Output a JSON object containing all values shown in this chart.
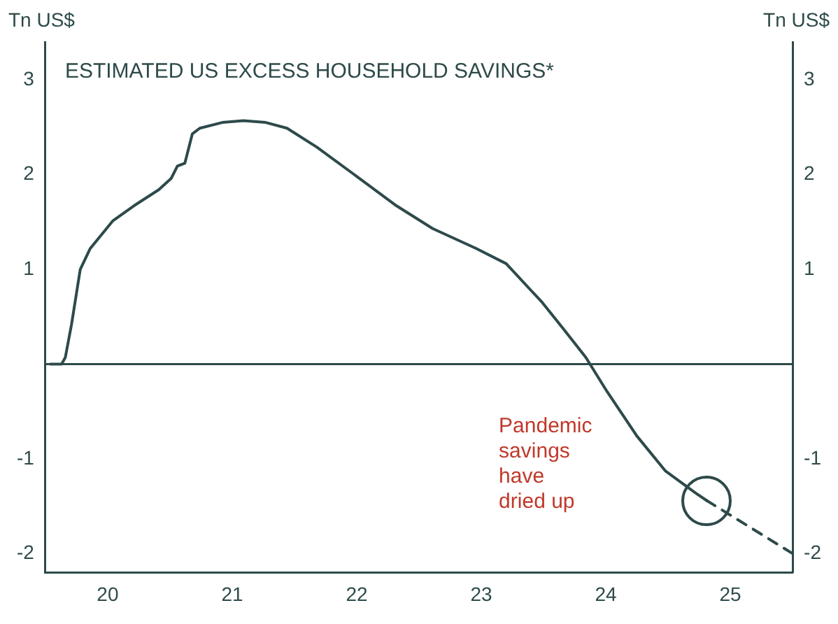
{
  "chart_data": {
    "type": "line",
    "title": "ESTIMATED US EXCESS HOUSEHOLD SAVINGS*",
    "ylabel": "Tn US$",
    "y2label": "Tn US$",
    "series": [
      {
        "color": "#2e4a4a",
        "line_style": "solid",
        "x": [
          19.54,
          19.63,
          19.66,
          19.71,
          19.78,
          19.86,
          20.04,
          20.21,
          20.41,
          20.51,
          20.56,
          20.62,
          20.68,
          20.74,
          20.92,
          21.09,
          21.27,
          21.44,
          21.68,
          21.97,
          22.32,
          22.61,
          22.96,
          23.2,
          23.49,
          23.66,
          23.84,
          24.01,
          24.25,
          24.48,
          24.72,
          24.81
        ],
        "values": [
          0,
          0,
          0.07,
          0.42,
          1.0,
          1.22,
          1.51,
          1.67,
          1.84,
          1.96,
          2.09,
          2.12,
          2.43,
          2.49,
          2.55,
          2.57,
          2.55,
          2.49,
          2.29,
          2.01,
          1.67,
          1.43,
          1.22,
          1.06,
          0.65,
          0.37,
          0.07,
          -0.29,
          -0.76,
          -1.13,
          -1.36,
          -1.44
        ]
      },
      {
        "color": "#2e4a4a",
        "line_style": "dashed",
        "x": [
          24.81,
          25.5
        ],
        "values": [
          -1.44,
          -2.0
        ]
      }
    ],
    "xlim": [
      19.5,
      25.5
    ],
    "xticks": [
      20,
      21,
      22,
      23,
      24,
      25
    ],
    "ylim": [
      -2.2,
      3.4
    ],
    "yticks": [
      3,
      2,
      1,
      -1,
      -2
    ],
    "y2lim": [
      -2.2,
      3.4
    ],
    "y2ticks": [
      3,
      2,
      1,
      -1,
      -2
    ],
    "ref_lines": [
      {
        "axis": "y",
        "value": 0,
        "color": "#2e4a4a"
      }
    ],
    "annotations": [
      "Pandemic savings have dried up"
    ],
    "grid": false,
    "legend": false,
    "marker": "none"
  }
}
